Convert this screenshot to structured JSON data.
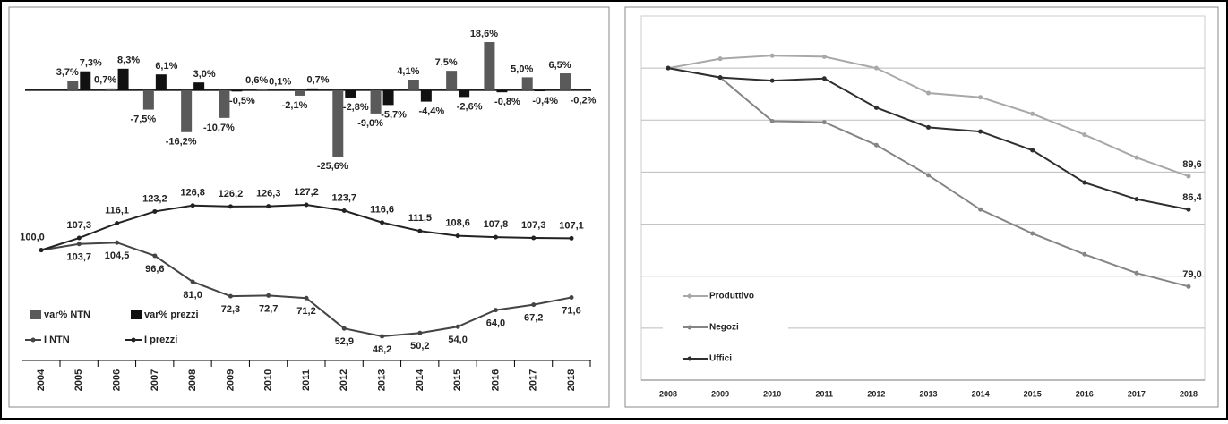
{
  "chart_data": [
    {
      "type": "combo",
      "categories": [
        "2004",
        "2005",
        "2006",
        "2007",
        "2008",
        "2009",
        "2010",
        "2011",
        "2012",
        "2013",
        "2014",
        "2015",
        "2016",
        "2017",
        "2018"
      ],
      "series": [
        {
          "name": "var% NTN",
          "type": "bar",
          "color": "#5a5a5a",
          "values": [
            null,
            3.7,
            0.7,
            -7.5,
            -16.2,
            -10.7,
            0.6,
            -2.1,
            -25.6,
            -9.0,
            4.1,
            7.5,
            18.6,
            5.0,
            6.5
          ],
          "value_labels": [
            null,
            "3,7%",
            "0,7%",
            "-7,5%",
            "-16,2%",
            "-10,7%",
            "0,6%",
            "-2,1%",
            "-25,6%",
            "-9,0%",
            "4,1%",
            "7,5%",
            "18,6%",
            "5,0%",
            "6,5%"
          ]
        },
        {
          "name": "var% prezzi",
          "type": "bar",
          "color": "#111111",
          "values": [
            null,
            7.3,
            8.3,
            6.1,
            3.0,
            -0.5,
            0.1,
            0.7,
            -2.8,
            -5.7,
            -4.4,
            -2.6,
            -0.8,
            -0.4,
            -0.2
          ],
          "value_labels": [
            null,
            "7,3%",
            "8,3%",
            "6,1%",
            "3,0%",
            "-0,5%",
            "0,1%",
            "0,7%",
            "-2,8%",
            "-5,7%",
            "-4,4%",
            "-2,6%",
            "-0,8%",
            "-0,4%",
            "-0,2%"
          ]
        },
        {
          "name": "I NTN",
          "type": "line",
          "color": "#444444",
          "values": [
            100.0,
            103.7,
            104.5,
            96.6,
            81.0,
            72.3,
            72.7,
            71.2,
            52.9,
            48.2,
            50.2,
            54.0,
            64.0,
            67.2,
            71.6
          ],
          "value_labels": [
            null,
            "103,7",
            "104,5",
            "96,6",
            "81,0",
            "72,3",
            "72,7",
            "71,2",
            "52,9",
            "48,2",
            "50,2",
            "54,0",
            "64,0",
            "67,2",
            "71,6"
          ]
        },
        {
          "name": "I prezzi",
          "type": "line",
          "color": "#222222",
          "values": [
            100.0,
            107.3,
            116.1,
            123.2,
            126.8,
            126.2,
            126.3,
            127.2,
            123.7,
            116.6,
            111.5,
            108.6,
            107.8,
            107.3,
            107.1
          ],
          "value_labels": [
            "100,0",
            "107,3",
            "116,1",
            "123,2",
            "126,8",
            "126,2",
            "126,3",
            "127,2",
            "123,7",
            "116,6",
            "111,5",
            "108,6",
            "107,8",
            "107,3",
            "107,1"
          ]
        }
      ]
    },
    {
      "type": "line",
      "categories": [
        "2008",
        "2009",
        "2010",
        "2011",
        "2012",
        "2013",
        "2014",
        "2015",
        "2016",
        "2017",
        "2018"
      ],
      "ylim": [
        70,
        105
      ],
      "yticks": [
        75,
        80,
        85,
        90,
        95,
        100
      ],
      "grid": true,
      "series": [
        {
          "name": "Produttivo",
          "color": "#a8a8a8",
          "values": [
            100,
            100.9,
            101.2,
            101.1,
            100,
            97.6,
            97.2,
            95.6,
            93.6,
            91.4,
            89.6
          ],
          "value_labels": [
            null,
            null,
            null,
            null,
            null,
            null,
            null,
            null,
            null,
            null,
            "89,6"
          ]
        },
        {
          "name": "Negozi",
          "color": "#858585",
          "values": [
            100,
            99.1,
            94.9,
            94.8,
            92.6,
            89.7,
            86.4,
            84.1,
            82.1,
            80.3,
            79.0
          ],
          "value_labels": [
            null,
            null,
            null,
            null,
            null,
            null,
            null,
            null,
            null,
            null,
            "79,0"
          ]
        },
        {
          "name": "Uffici",
          "color": "#2e2e2e",
          "values": [
            100,
            99.1,
            98.8,
            99.0,
            96.2,
            94.3,
            93.9,
            92.1,
            89.0,
            87.4,
            86.4
          ],
          "value_labels": [
            null,
            null,
            null,
            null,
            null,
            null,
            null,
            null,
            null,
            null,
            "86,4"
          ]
        }
      ]
    }
  ]
}
